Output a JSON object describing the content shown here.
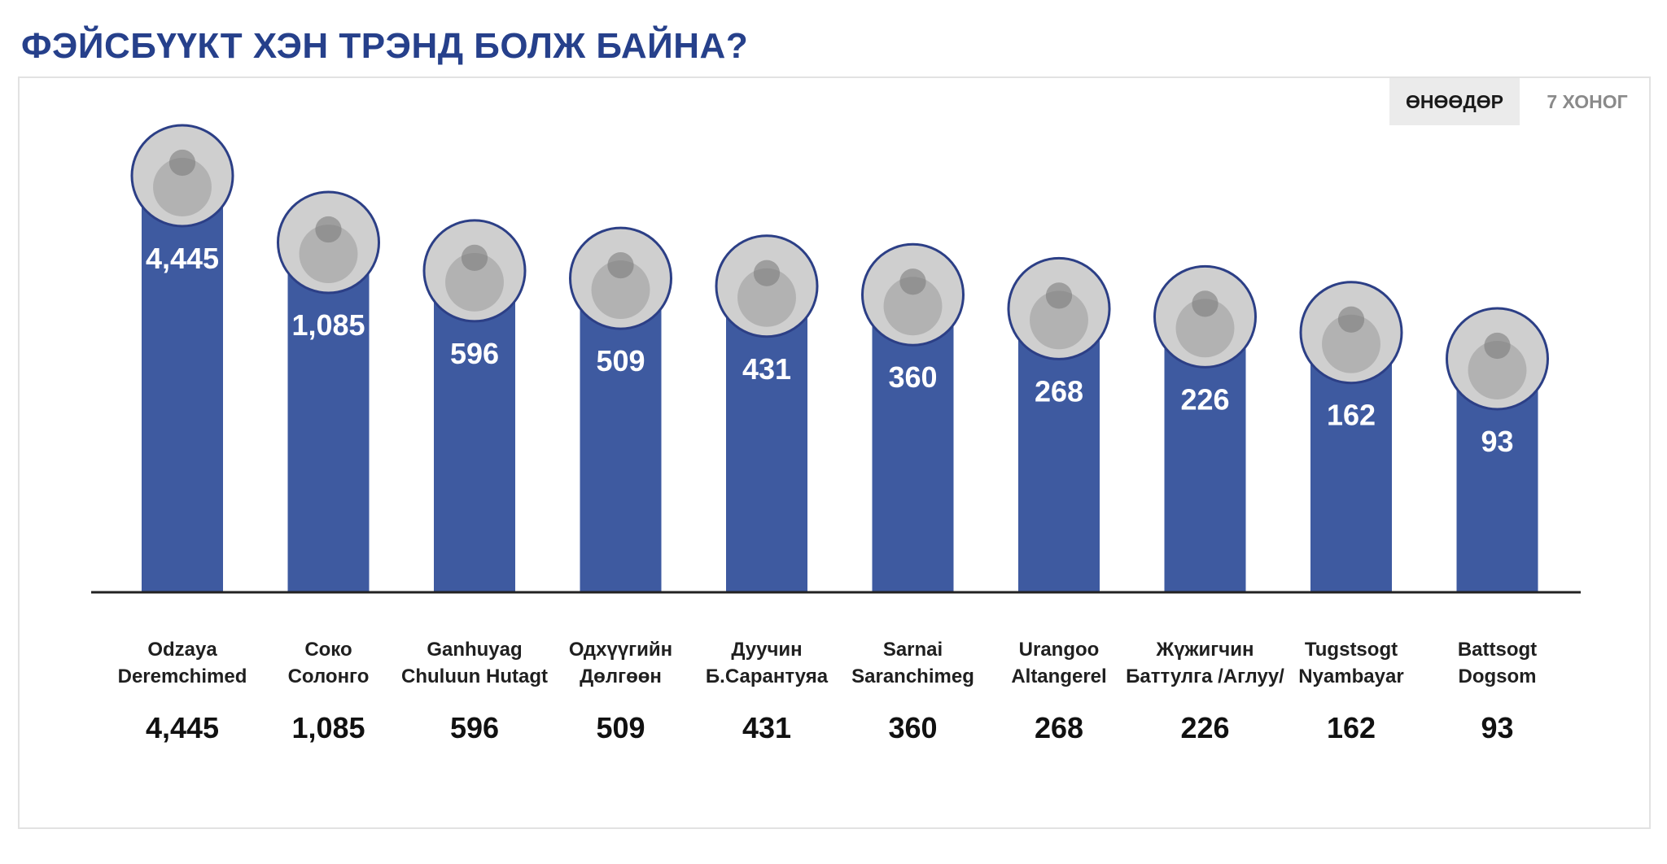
{
  "title": "ФЭЙСБҮҮКТ ХЭН ТРЭНД БОЛЖ БАЙНА?",
  "tabs": [
    {
      "label": "ӨНӨӨДӨР",
      "active": true
    },
    {
      "label": "7 ХОНОГ",
      "active": false
    }
  ],
  "colors": {
    "bar": "#3e5aa0",
    "title": "#26408b",
    "baseline": "#222222"
  },
  "chart_data": {
    "type": "bar",
    "categories": [
      [
        "Odzaya",
        "Deremchimed"
      ],
      [
        "Соко",
        "Солонго"
      ],
      [
        "Ganhuyag",
        "Chuluun Hutagt"
      ],
      [
        "Одхүүгийн",
        "Дөлгөөн"
      ],
      [
        "Дуучин",
        "Б.Сарантуяа"
      ],
      [
        "Sarnai",
        "Saranchimeg"
      ],
      [
        "Urangoo",
        "Altangerel"
      ],
      [
        "Жүжигчин",
        "Баттулга /Аглуу/"
      ],
      [
        "Tugstsogt",
        "Nyambayar"
      ],
      [
        "Battsogt",
        "Dogsom"
      ]
    ],
    "values": [
      4445,
      1085,
      596,
      509,
      431,
      360,
      268,
      226,
      162,
      93
    ],
    "value_labels": [
      "4,445",
      "1,085",
      "596",
      "509",
      "431",
      "360",
      "268",
      "226",
      "162",
      "93"
    ],
    "title": "",
    "xlabel": "",
    "ylabel": "",
    "grid": false,
    "legend": "none"
  }
}
